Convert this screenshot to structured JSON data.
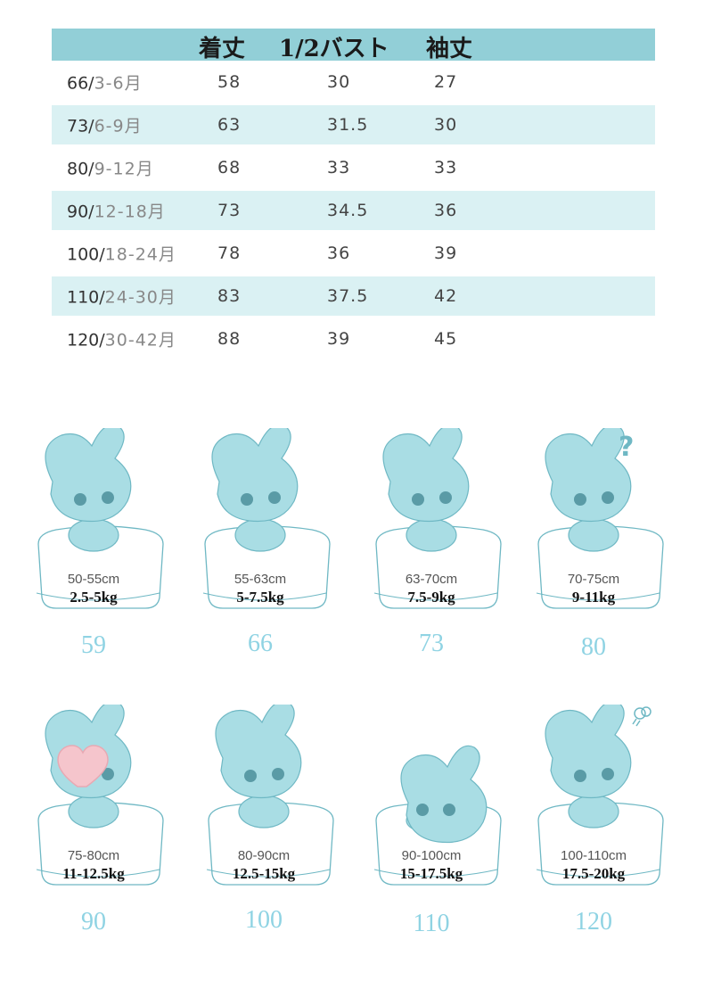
{
  "table": {
    "headers": [
      "着丈",
      "1/2バスト",
      "袖丈"
    ],
    "rows": [
      {
        "size": "66/",
        "age": "3-6月",
        "length": "58",
        "bust": "30",
        "sleeve": "27"
      },
      {
        "size": "73/",
        "age": "6-9月",
        "length": "63",
        "bust": "31.5",
        "sleeve": "30"
      },
      {
        "size": "80/",
        "age": "9-12月",
        "length": "68",
        "bust": "33",
        "sleeve": "33"
      },
      {
        "size": "90/",
        "age": "12-18月",
        "length": "73",
        "bust": "34.5",
        "sleeve": "36"
      },
      {
        "size": "100/",
        "age": "18-24月",
        "length": "78",
        "bust": "36",
        "sleeve": "39"
      },
      {
        "size": "110/",
        "age": "24-30月",
        "length": "83",
        "bust": "37.5",
        "sleeve": "42"
      },
      {
        "size": "120/",
        "age": "30-42月",
        "length": "88",
        "bust": "39",
        "sleeve": "45"
      }
    ]
  },
  "cards": [
    {
      "height": "50-55cm",
      "weight": "2.5-5kg",
      "size": "59"
    },
    {
      "height": "55-63cm",
      "weight": "5-7.5kg",
      "size": "66"
    },
    {
      "height": "63-70cm",
      "weight": "7.5-9kg",
      "size": "73"
    },
    {
      "height": "70-75cm",
      "weight": "9-11kg",
      "size": "80"
    },
    {
      "height": "75-80cm",
      "weight": "11-12.5kg",
      "size": "90"
    },
    {
      "height": "80-90cm",
      "weight": "12.5-15kg",
      "size": "100"
    },
    {
      "height": "90-100cm",
      "weight": "15-17.5kg",
      "size": "110"
    },
    {
      "height": "100-110cm",
      "weight": "17.5-20kg",
      "size": "120"
    }
  ],
  "decor": {
    "question_mark": "?"
  },
  "colors": {
    "header": "#92cfd7",
    "stripe": "#daf1f3",
    "mascot": "#a9dde4",
    "mascot_stroke": "#6fb8c4",
    "number": "#8fd3e3",
    "heart": "#f5c5cc"
  }
}
